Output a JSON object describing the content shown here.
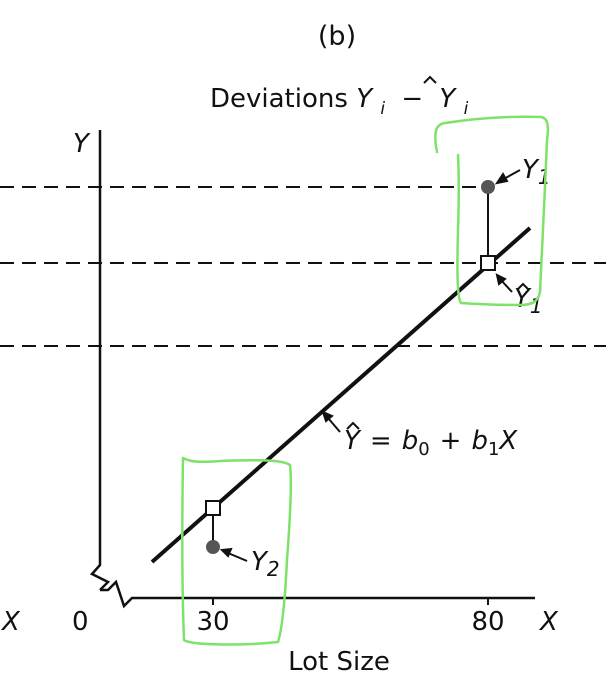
{
  "panel_label": "(b)",
  "title": {
    "prefix": "Deviations ",
    "y_symbol": "Y",
    "subscript_i": "i",
    "minus": "−"
  },
  "axes": {
    "y_label": "Y",
    "x_label": "X",
    "x_label_left_fragment": "X",
    "origin_label": "0",
    "x_ticks": [
      "30",
      "80"
    ],
    "x_title": "Lot Size"
  },
  "annotations": {
    "y1_symbol": "Y",
    "y1_sub": "1",
    "yhat1_symbol": "Y",
    "yhat1_sub": "1",
    "y2_symbol": "Y",
    "y2_sub": "2",
    "regression": {
      "yhat": "Y",
      "equals": "=",
      "b": "b",
      "sub0": "0",
      "plus": "+",
      "sub1": "1",
      "x": "X"
    }
  },
  "colors": {
    "ink": "#111111",
    "point_fill": "#555555",
    "highlight": "#7ee26a"
  }
}
